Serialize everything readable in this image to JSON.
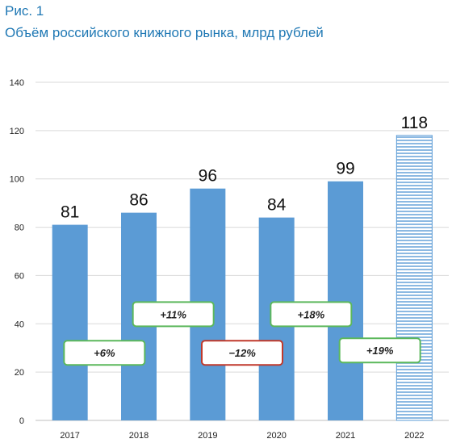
{
  "figure": {
    "label": "Рис. 1",
    "title": "Объём российского книжного рынка, млрд рублей"
  },
  "colors": {
    "bar": "#5b9bd5",
    "hatch": "#5b9bd5",
    "grid": "#d9d9d9",
    "positive_border": "#5cb85c",
    "negative_border": "#c0392b"
  },
  "chart_data": {
    "type": "bar",
    "title": "Объём российского книжного рынка, млрд рублей",
    "categories": [
      "2017",
      "2018",
      "2019",
      "2020",
      "2021",
      "2022"
    ],
    "values": [
      81,
      86,
      96,
      84,
      99,
      118
    ],
    "value_labels": [
      "81",
      "86",
      "96",
      "84",
      "99",
      "118"
    ],
    "bar_style": [
      "solid",
      "solid",
      "solid",
      "solid",
      "solid",
      "hatched"
    ],
    "ylim": [
      0,
      140
    ],
    "yticks": [
      0,
      20,
      40,
      60,
      80,
      100,
      120,
      140
    ],
    "grid": true,
    "legend": "none",
    "annotations": [
      {
        "text": "+6%",
        "between": [
          "2017",
          "2018"
        ],
        "type": "positive",
        "y": 28
      },
      {
        "text": "+11%",
        "between": [
          "2018",
          "2019"
        ],
        "type": "positive",
        "y": 44
      },
      {
        "text": "−12%",
        "between": [
          "2019",
          "2020"
        ],
        "type": "negative",
        "y": 28
      },
      {
        "text": "+18%",
        "between": [
          "2020",
          "2021"
        ],
        "type": "positive",
        "y": 44
      },
      {
        "text": "+19%",
        "between": [
          "2021",
          "2022"
        ],
        "type": "positive",
        "y": 29
      }
    ]
  }
}
